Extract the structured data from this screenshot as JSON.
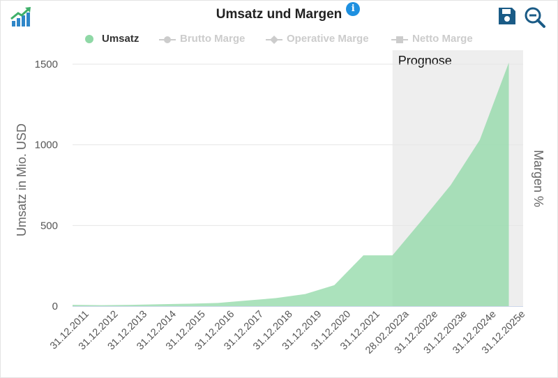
{
  "header": {
    "title": "Umsatz und Margen",
    "info_icon_glyph": "i"
  },
  "legend": [
    {
      "label": "Umsatz",
      "active": true,
      "marker": "circle",
      "color": "#8fd8a6"
    },
    {
      "label": "Brutto Marge",
      "active": false,
      "marker": "line-circle",
      "color": "#cccccc"
    },
    {
      "label": "Operative Marge",
      "active": false,
      "marker": "line-diamond",
      "color": "#cccccc"
    },
    {
      "label": "Netto Marge",
      "active": false,
      "marker": "line-square",
      "color": "#cccccc"
    }
  ],
  "toolbar": {
    "logo_icon": "chart-growth-logo-icon",
    "save_icon": "floppy-disk-icon",
    "zoom_icon": "zoom-out-icon"
  },
  "chart_data": {
    "type": "area",
    "x": [
      "31.12.2011",
      "31.12.2012",
      "31.12.2013",
      "31.12.2014",
      "31.12.2015",
      "31.12.2016",
      "31.12.2017",
      "31.12.2018",
      "31.12.2019",
      "31.12.2020",
      "31.12.2021",
      "28.02.2022a",
      "31.12.2022e",
      "31.12.2023e",
      "31.12.2024e",
      "31.12.2025e"
    ],
    "series": [
      {
        "name": "Umsatz",
        "values": [
          8,
          6,
          8,
          12,
          15,
          20,
          35,
          50,
          75,
          130,
          315,
          315,
          530,
          750,
          1030,
          1510
        ],
        "color": "#8fd8a6"
      }
    ],
    "ylabel": "Umsatz in Mio. USD",
    "y2label": "Margen %",
    "ylim": [
      0,
      1600
    ],
    "yticks": [
      0,
      500,
      1000,
      1500
    ],
    "grid": true,
    "legend_position": "top",
    "forecast_band": {
      "label": "Prognose",
      "start": "28.02.2022a",
      "end": "31.12.2025e",
      "color": "#eeeeee"
    }
  }
}
